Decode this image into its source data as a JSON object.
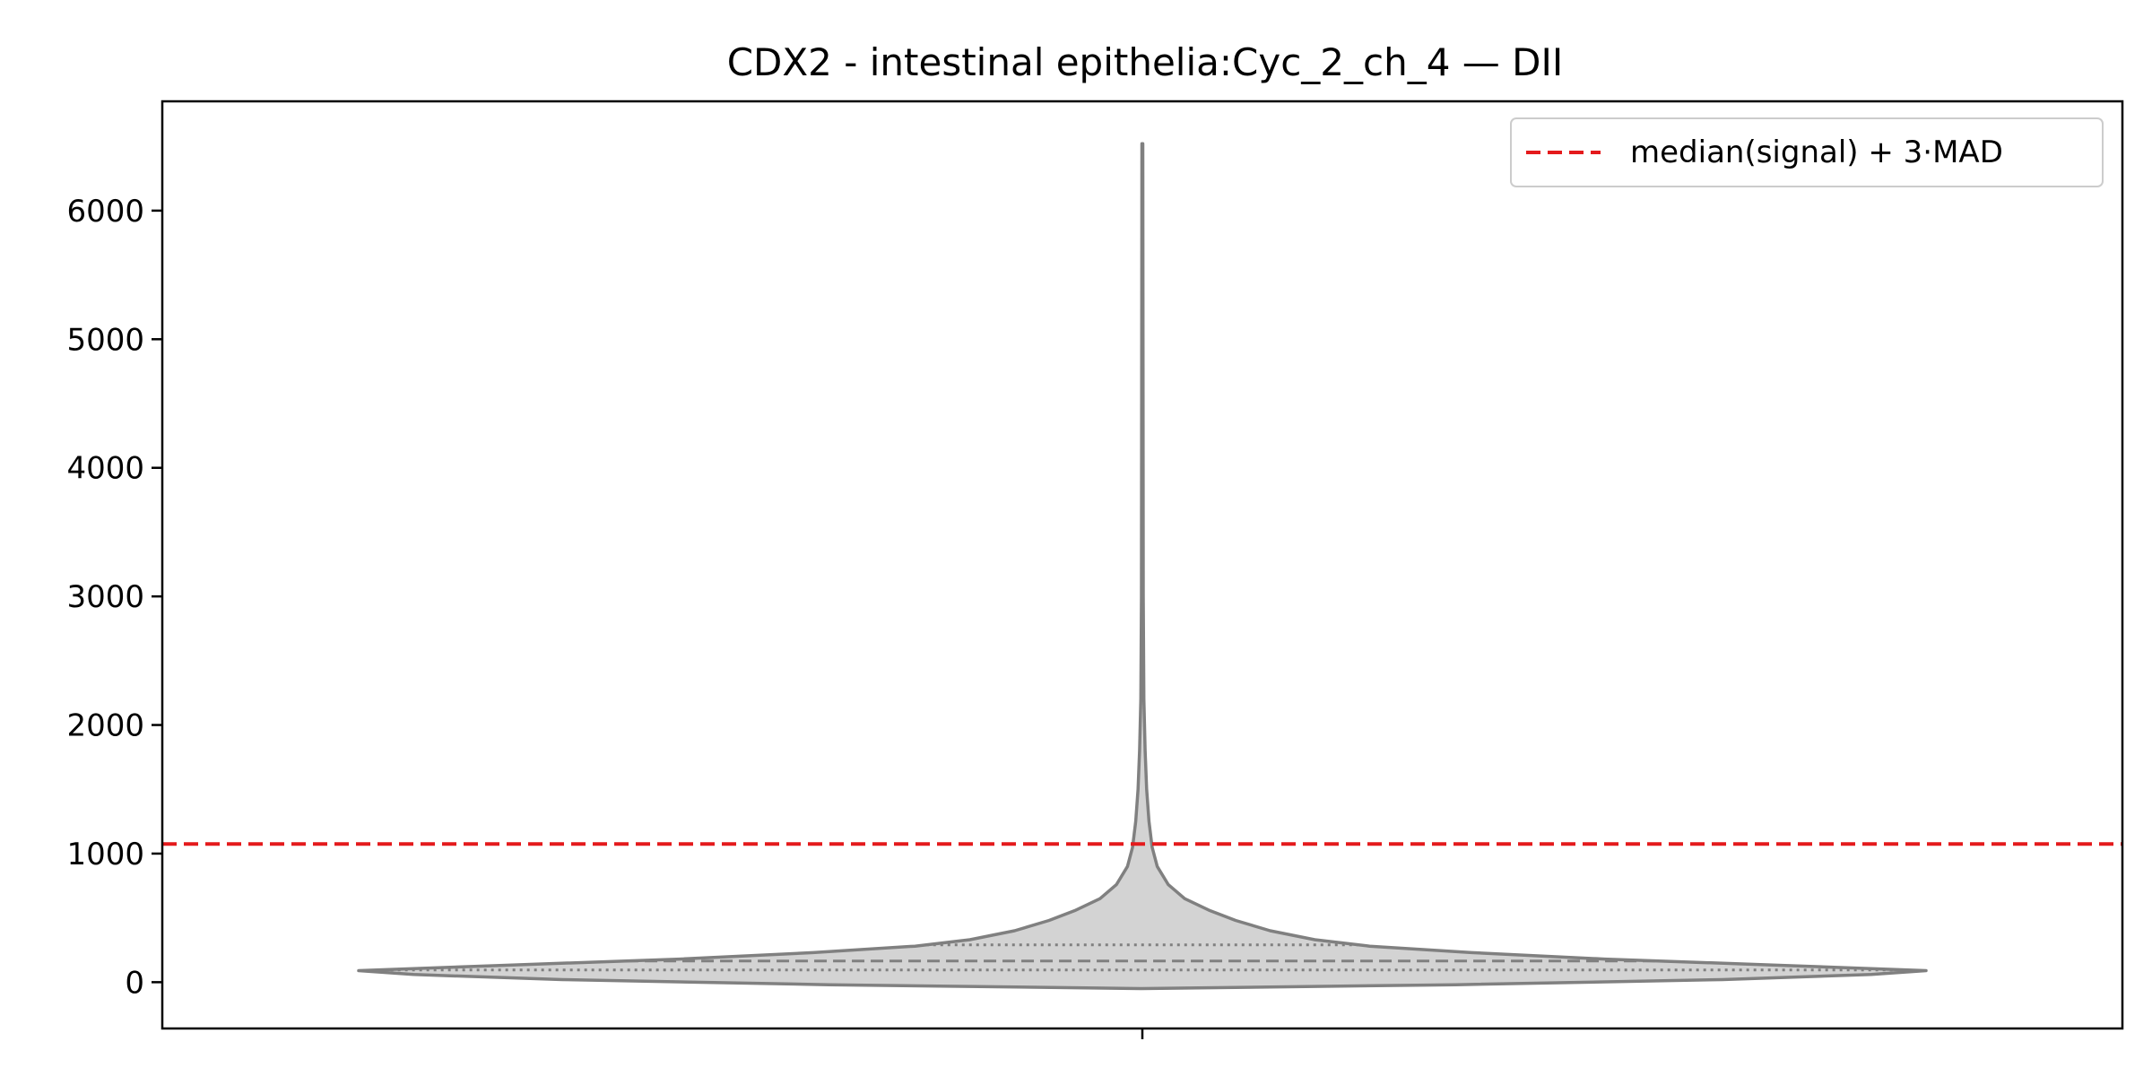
{
  "chart_data": {
    "type": "violin",
    "title": "CDX2 - intestinal epithelia:Cyc_2_ch_4 — DII",
    "xlabel": "",
    "ylabel": "",
    "ylim": [
      -360,
      6850
    ],
    "yticks": [
      0,
      1000,
      2000,
      3000,
      4000,
      5000,
      6000
    ],
    "grid": false,
    "legend_position": "top-right",
    "violin": {
      "fill_color": "#d3d3d3",
      "edge_color": "#808080",
      "min": -50,
      "max": 6520,
      "q1": 95,
      "median": 165,
      "q3": 290,
      "density_profile": [
        {
          "y": -50,
          "width": 0.0
        },
        {
          "y": -20,
          "width": 0.4
        },
        {
          "y": 20,
          "width": 0.74
        },
        {
          "y": 60,
          "width": 0.93
        },
        {
          "y": 90,
          "width": 1.0
        },
        {
          "y": 130,
          "width": 0.82
        },
        {
          "y": 180,
          "width": 0.59
        },
        {
          "y": 230,
          "width": 0.42
        },
        {
          "y": 280,
          "width": 0.29
        },
        {
          "y": 330,
          "width": 0.22
        },
        {
          "y": 400,
          "width": 0.163
        },
        {
          "y": 480,
          "width": 0.119
        },
        {
          "y": 560,
          "width": 0.085
        },
        {
          "y": 650,
          "width": 0.054
        },
        {
          "y": 760,
          "width": 0.033
        },
        {
          "y": 900,
          "width": 0.019
        },
        {
          "y": 1050,
          "width": 0.0125
        },
        {
          "y": 1250,
          "width": 0.0085
        },
        {
          "y": 1500,
          "width": 0.0055
        },
        {
          "y": 1800,
          "width": 0.0035
        },
        {
          "y": 2200,
          "width": 0.002
        },
        {
          "y": 3000,
          "width": 0.0012
        },
        {
          "y": 4500,
          "width": 0.0009
        },
        {
          "y": 6520,
          "width": 0.0006
        }
      ]
    },
    "threshold_line": {
      "y": 1075,
      "color": "#e41a1c",
      "style": "dashed",
      "label": "median(signal) + 3·MAD"
    }
  }
}
